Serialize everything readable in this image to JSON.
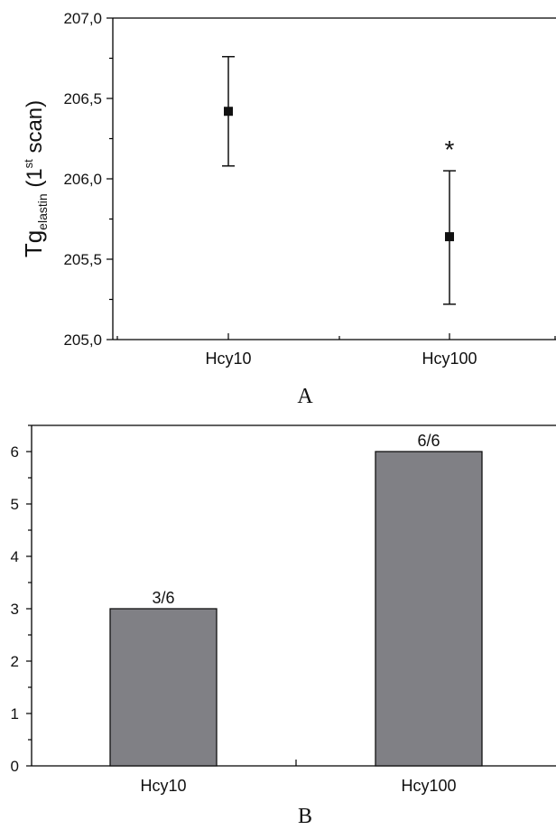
{
  "chart_data": [
    {
      "panel": "A",
      "type": "scatter",
      "categories": [
        "Hcy10",
        "Hcy100"
      ],
      "series": [
        {
          "values": [
            206.42,
            205.64
          ],
          "error_upper": [
            206.76,
            206.05
          ],
          "error_lower": [
            206.08,
            205.22
          ]
        }
      ],
      "significance_markers": [
        {
          "category": "Hcy100",
          "text": "*"
        }
      ],
      "ylabel": {
        "main": "Tg",
        "subscript": "elastin",
        "paren_open": " (1",
        "superscript": "st",
        "paren_close": " scan)"
      },
      "ylim": [
        205.0,
        207.0
      ],
      "yticks": [
        "205,0",
        "205,5",
        "206,0",
        "206,5",
        "207,0"
      ],
      "panel_label": "A",
      "grid": false
    },
    {
      "panel": "B",
      "type": "bar",
      "categories": [
        "Hcy10",
        "Hcy100"
      ],
      "values": [
        3,
        6
      ],
      "data_labels": [
        "3/6",
        "6/6"
      ],
      "ylim": [
        0,
        6.5
      ],
      "yticks": [
        "0",
        "1",
        "2",
        "3",
        "4",
        "5",
        "6"
      ],
      "bar_color": "#808085",
      "panel_label": "B",
      "grid": false
    }
  ]
}
